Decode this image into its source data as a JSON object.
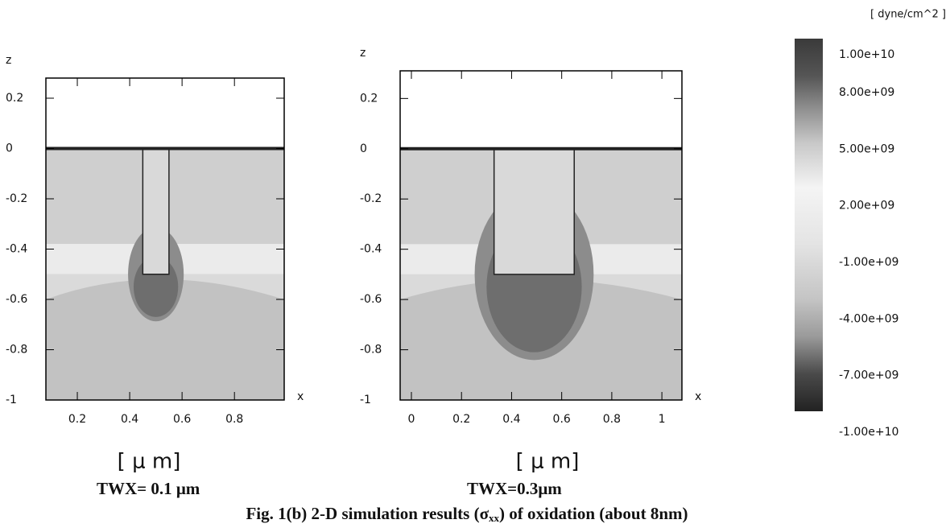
{
  "chart_data": [
    {
      "type": "contour",
      "title": "TWX= 0.1 μm",
      "x_label": "x",
      "y_label": "z",
      "unit_label": "[ μ m]",
      "xlim": [
        0.08,
        0.99
      ],
      "ylim": [
        -1,
        0.28
      ],
      "xticks": [
        0.2,
        0.4,
        0.6,
        0.8
      ],
      "yticks": [
        0.2,
        0,
        -0.2,
        -0.4,
        -0.6,
        -0.8,
        -1
      ]
    },
    {
      "type": "contour",
      "title": "TWX=0.3μm",
      "x_label": "x",
      "y_label": "z",
      "unit_label": "[ μ m]",
      "xlim": [
        -0.045,
        1.08
      ],
      "ylim": [
        -1,
        0.31
      ],
      "xticks": [
        0,
        0.2,
        0.4,
        0.6,
        0.8,
        1
      ],
      "yticks": [
        0.2,
        0,
        -0.2,
        -0.4,
        -0.6,
        -0.8,
        -1
      ]
    }
  ],
  "colorbar": {
    "title": "[ dyne/cm^2 ]",
    "ticks": [
      {
        "value": 10000000000,
        "label": "1.00e+10"
      },
      {
        "value": 8000000000,
        "label": "8.00e+09"
      },
      {
        "value": 5000000000,
        "label": "5.00e+09"
      },
      {
        "value": 2000000000,
        "label": "2.00e+09"
      },
      {
        "value": -1000000000,
        "label": "-1.00e+09"
      },
      {
        "value": -4000000000,
        "label": "-4.00e+09"
      },
      {
        "value": -7000000000,
        "label": "-7.00e+09"
      },
      {
        "value": -10000000000,
        "label": "-1.00e+10"
      }
    ]
  },
  "caption": [
    "Fig. 1(b) 2-D simulation  results (σ",
    "xx",
    ") of oxidation  (about 8nm)"
  ]
}
